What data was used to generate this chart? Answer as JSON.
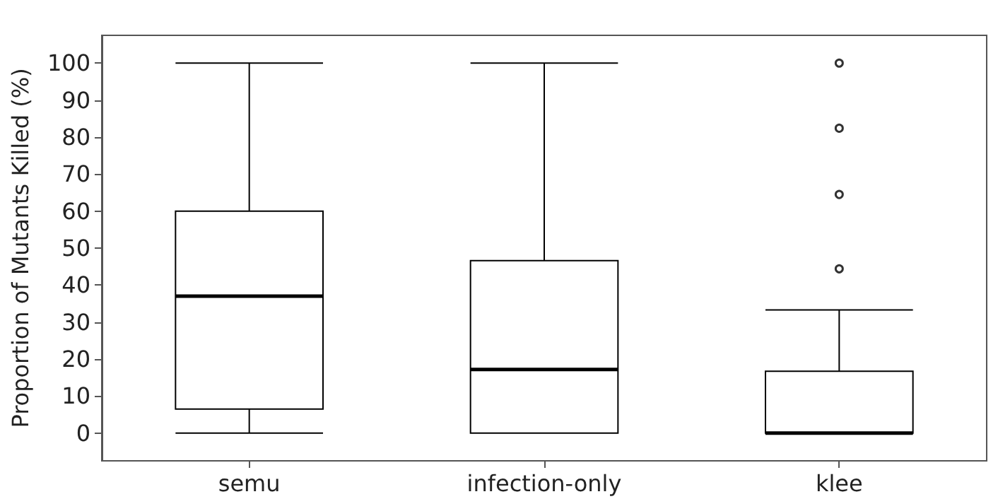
{
  "chart_data": {
    "type": "box",
    "ylabel": "Proportion of Mutants Killed (%)",
    "categories": [
      "semu",
      "infection-only",
      "klee"
    ],
    "boxes": [
      {
        "low": 0,
        "q1": 6.5,
        "median": 37,
        "q3": 60,
        "high": 100
      },
      {
        "low": 0,
        "q1": 0,
        "median": 17.2,
        "q3": 46.6,
        "high": 100
      },
      {
        "low": 0,
        "q1": 0,
        "median": 0,
        "q3": 16.7,
        "high": 33.3,
        "outliers": [
          44.4,
          64.5,
          82.4,
          100
        ]
      }
    ],
    "color": "#000000",
    "ylim": [
      -7.5,
      107.5
    ],
    "yticks": [
      0,
      10,
      20,
      30,
      40,
      50,
      60,
      70,
      80,
      90,
      100
    ],
    "grid": false
  }
}
